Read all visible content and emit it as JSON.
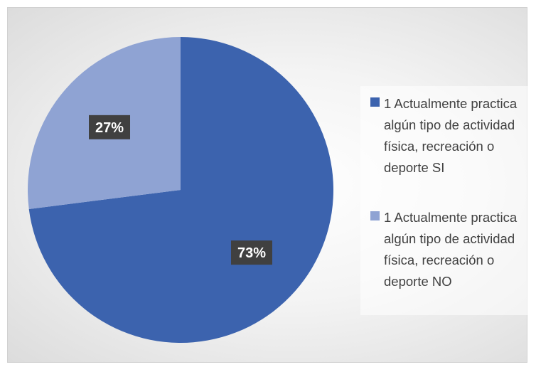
{
  "chart_data": {
    "type": "pie",
    "title": "",
    "slices": [
      {
        "label": "1 Actualmente practica algún tipo de actividad física, recreación o deporte SI",
        "value": 73,
        "display": "73%",
        "color": "#3c63ae"
      },
      {
        "label": "1 Actualmente practica algún tipo de actividad física, recreación o deporte NO",
        "value": 27,
        "display": "27%",
        "color": "#8fa3d3"
      }
    ],
    "legend_position": "right",
    "label_box_color": "#404040"
  }
}
